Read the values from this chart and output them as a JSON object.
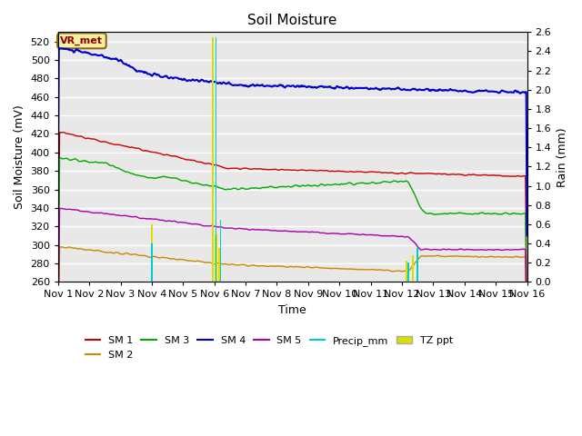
{
  "title": "Soil Moisture",
  "xlabel": "Time",
  "ylabel_left": "Soil Moisture (mV)",
  "ylabel_right": "Rain (mm)",
  "ylim_left": [
    260,
    530
  ],
  "ylim_right": [
    0.0,
    2.6
  ],
  "yticks_left": [
    260,
    280,
    300,
    320,
    340,
    360,
    380,
    400,
    420,
    440,
    460,
    480,
    500,
    520
  ],
  "yticks_right": [
    0.0,
    0.2,
    0.4,
    0.6,
    0.8,
    1.0,
    1.2,
    1.4,
    1.6,
    1.8,
    2.0,
    2.2,
    2.4,
    2.6
  ],
  "xtick_labels": [
    "Nov 1",
    "Nov 2",
    "Nov 3",
    "Nov 4",
    "Nov 5",
    "Nov 6",
    "Nov 7",
    "Nov 8",
    "Nov 9",
    "Nov 10",
    "Nov 11",
    "Nov 12",
    "Nov 13",
    "Nov 14",
    "Nov 15",
    "Nov 16"
  ],
  "fig_bg": "#ffffff",
  "plot_bg": "#e8e8e8",
  "grid_color": "#ffffff",
  "vr_met_label": "VR_met",
  "vr_met_bg": "#f5f0a0",
  "vr_met_border": "#8b6914",
  "vr_met_text_color": "#8b0000",
  "colors": {
    "SM1": "#cc0000",
    "SM2": "#cc8800",
    "SM3": "#00aa00",
    "SM4": "#0000cc",
    "SM5": "#aa00aa",
    "Precip": "#00cccc",
    "TZ_ppt": "#dddd00"
  },
  "tz_days": [
    3.0,
    4.95,
    5.05,
    5.15,
    11.15,
    11.35
  ],
  "tz_vals": [
    0.6,
    2.55,
    0.5,
    0.35,
    0.22,
    0.28
  ],
  "precip_days": [
    3.0,
    5.05,
    5.2,
    11.2,
    11.5
  ],
  "precip_vals": [
    0.4,
    2.55,
    0.65,
    0.2,
    0.35
  ]
}
